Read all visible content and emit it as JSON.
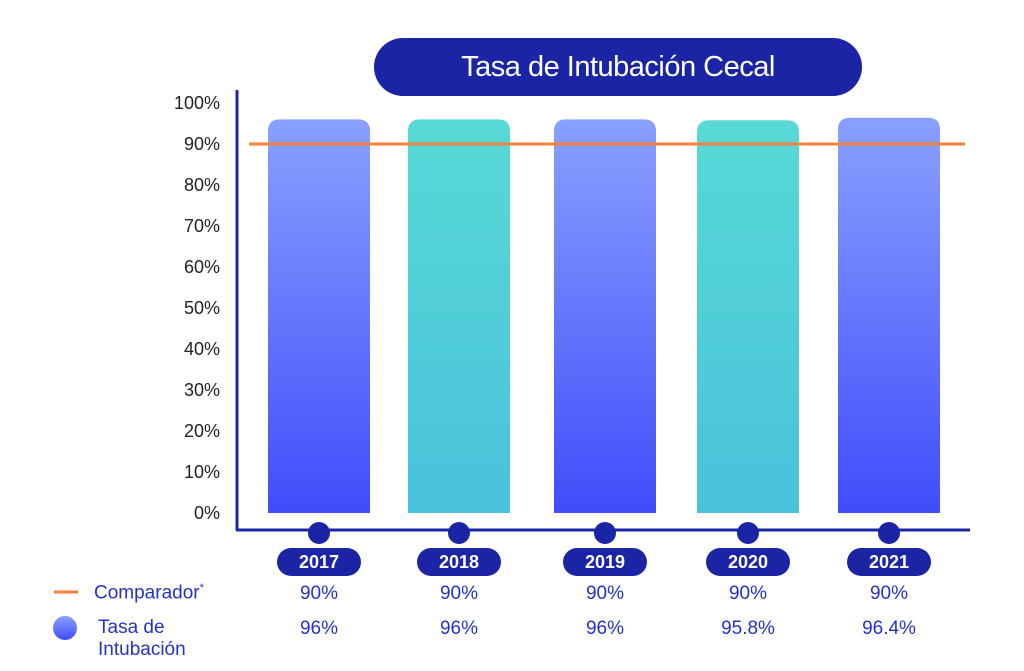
{
  "colors": {
    "navy": "#1c24a6",
    "axis": "#1c24a6",
    "comparator": "#f5823b",
    "bar_blue_top": "#8aa0ff",
    "bar_blue_bottom": "#3f4dfa",
    "bar_teal_top": "#58d9d5",
    "bar_teal_bottom": "#49c2dc",
    "legend_text": "#2432c8"
  },
  "chart_data": {
    "type": "bar",
    "title": "Tasa de Intubación Cecal",
    "categories": [
      "2017",
      "2018",
      "2019",
      "2020",
      "2021"
    ],
    "series": [
      {
        "name": "Tasa de Intubación",
        "values": [
          96,
          96,
          96,
          95.8,
          96.4
        ],
        "value_labels": [
          "96%",
          "96%",
          "96%",
          "95.8%",
          "96.4%"
        ],
        "bar_styles": [
          "blue",
          "teal",
          "blue",
          "teal",
          "blue"
        ]
      },
      {
        "name": "Comparador",
        "values": [
          90,
          90,
          90,
          90,
          90
        ],
        "value_labels": [
          "90%",
          "90%",
          "90%",
          "90%",
          "90%"
        ],
        "line": true
      }
    ],
    "ylim": [
      0,
      100
    ],
    "yticks": [
      "100%",
      "90%",
      "80%",
      "70%",
      "60%",
      "50%",
      "40%",
      "30%",
      "20%",
      "10%",
      "0%"
    ],
    "grid": false,
    "legend_placement": "bottom-left"
  },
  "legend": {
    "comparator_label": "Comparador",
    "comparator_mark": "*",
    "rate_label": "Tasa de Intubación"
  }
}
